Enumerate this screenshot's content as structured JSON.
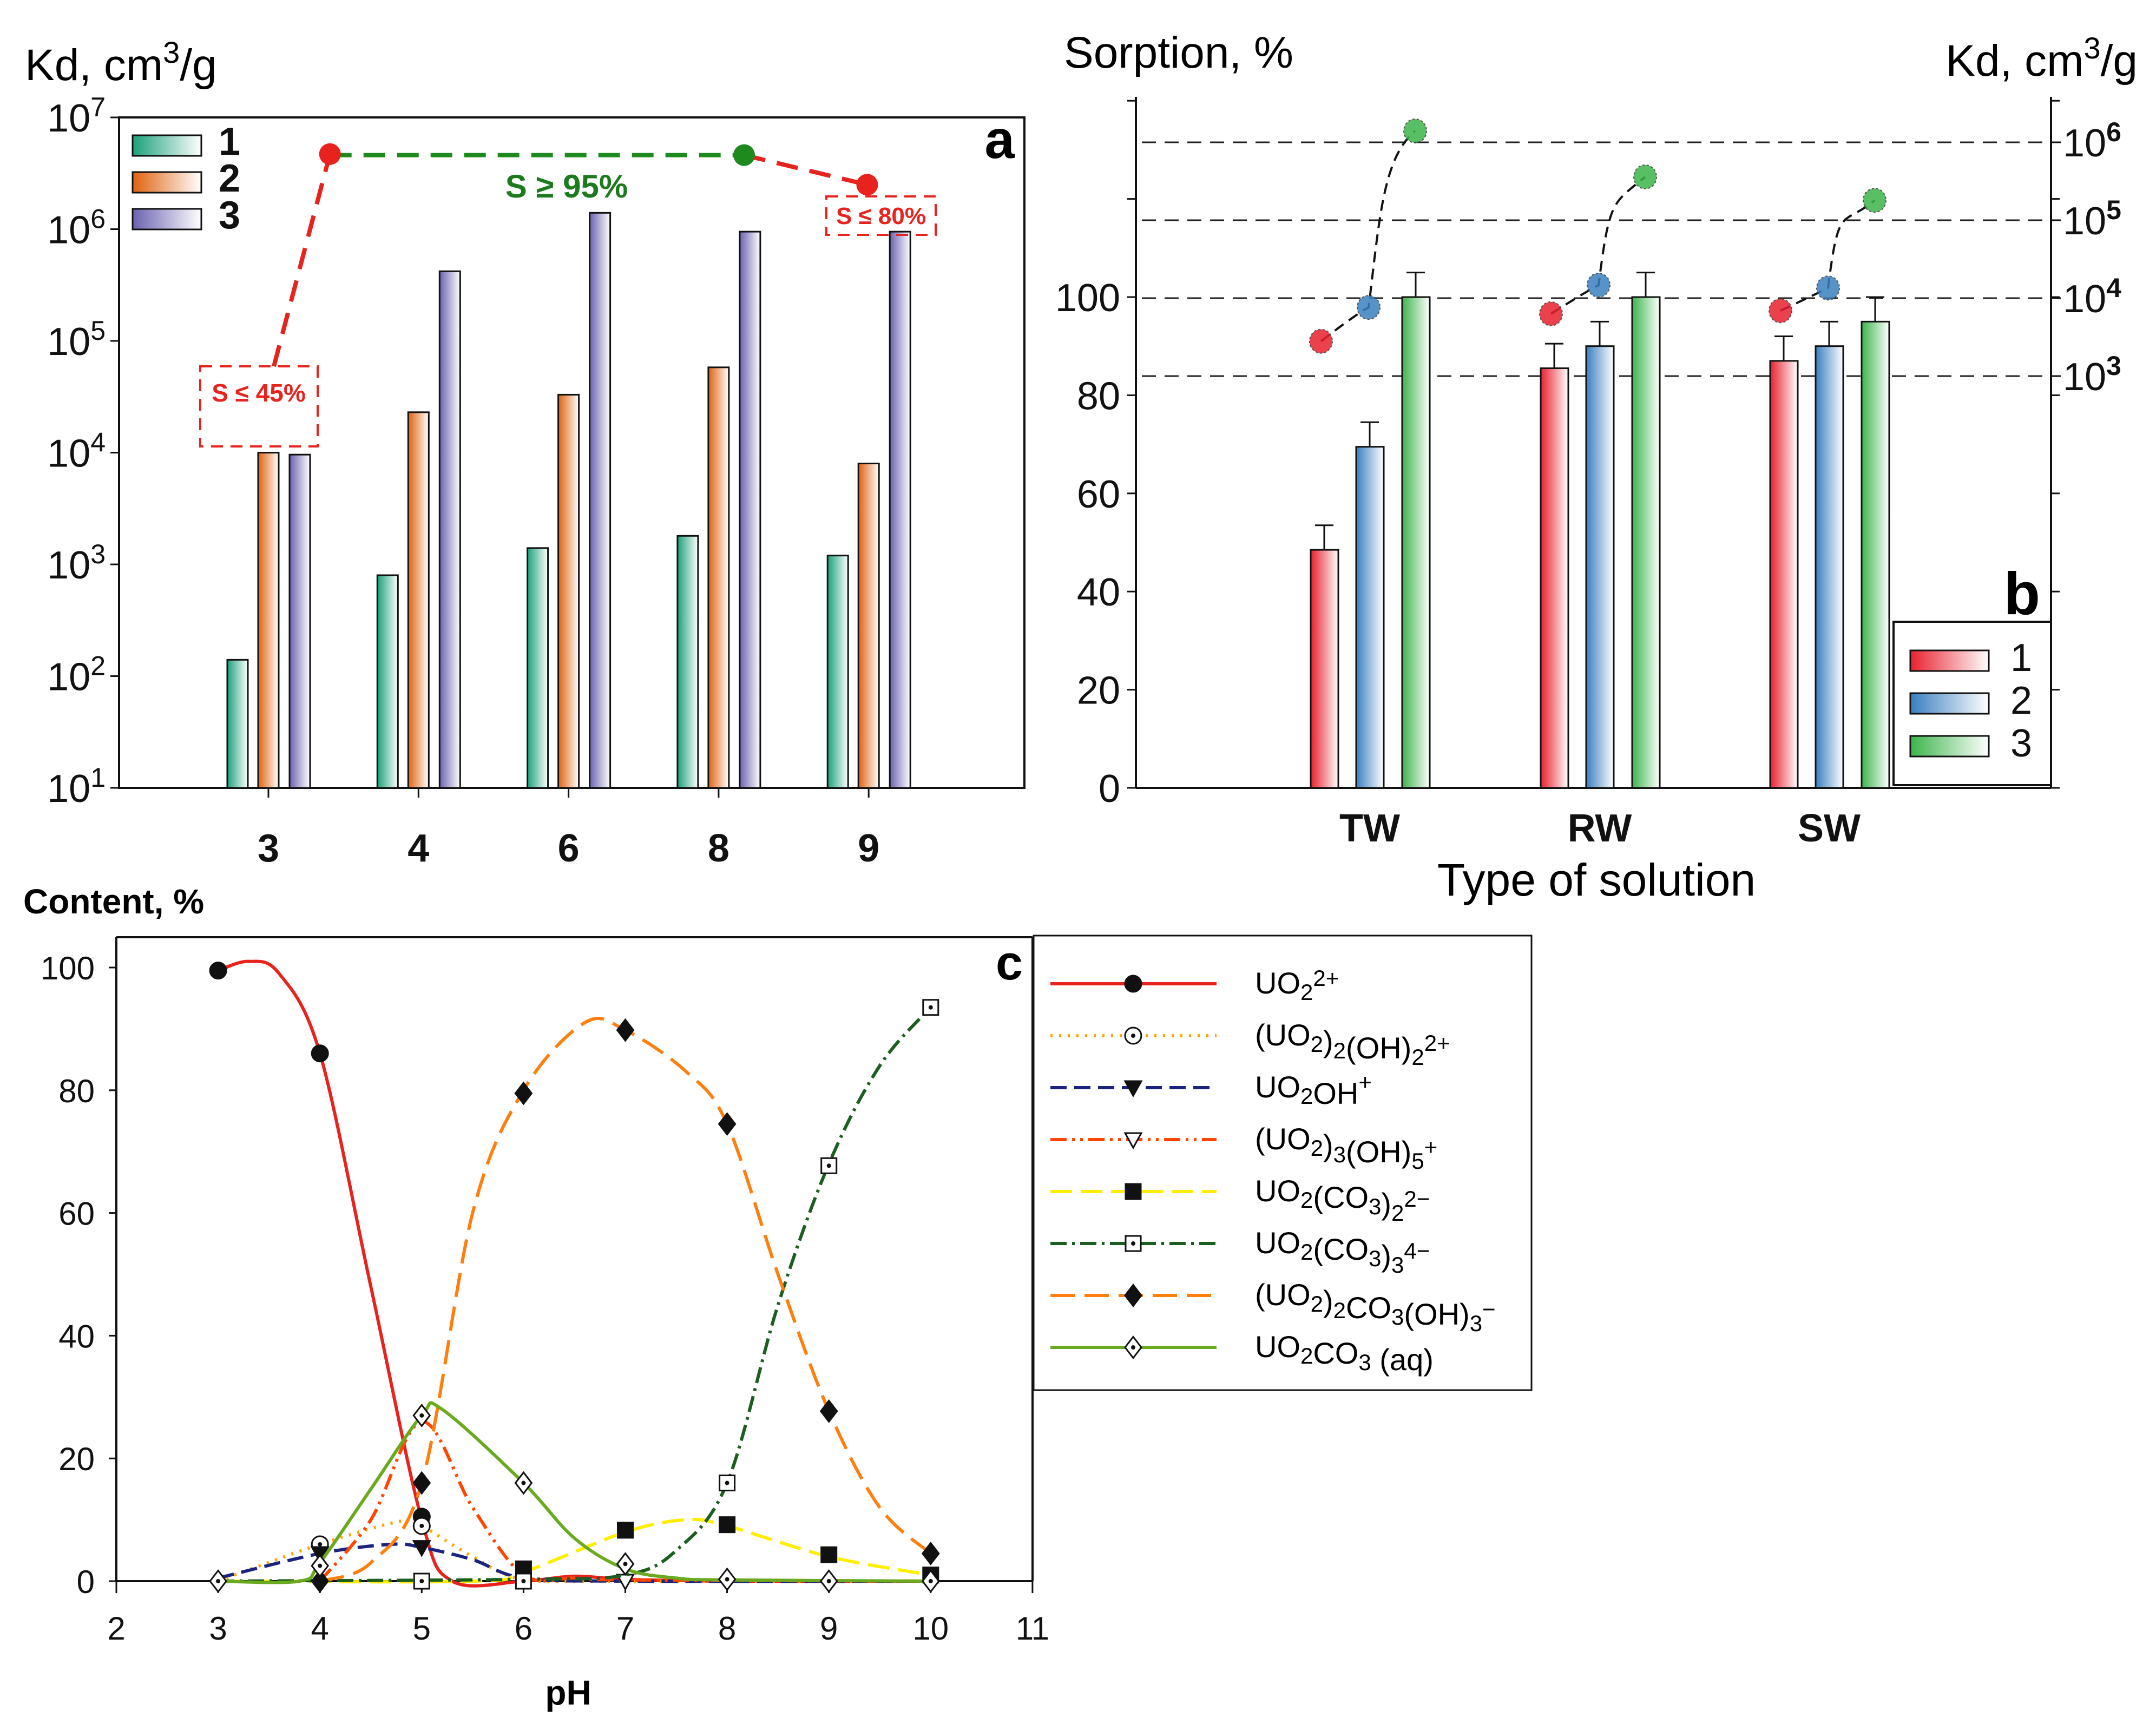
{
  "chart_data": [
    {
      "panel": "a",
      "type": "bar",
      "panel_label": "a",
      "ylabel": {
        "base": "Kd, cm",
        "sup": "3",
        "tail": "/g"
      },
      "yscale": "log",
      "ylim": [
        10,
        10000000
      ],
      "ytick_exponents": [
        "1",
        "2",
        "3",
        "4",
        "5",
        "6",
        "7"
      ],
      "categories": [
        "3",
        "4",
        "6",
        "8",
        "9"
      ],
      "series": [
        {
          "name": "1",
          "color": "#1aa07a",
          "values": [
            140,
            800,
            1400,
            1800,
            1200
          ]
        },
        {
          "name": "2",
          "color": "#e0620f",
          "values": [
            10000,
            23000,
            33000,
            58000,
            8000
          ]
        },
        {
          "name": "3",
          "color": "#6a62b0",
          "values": [
            9600,
            420000,
            1400000,
            950000,
            950000
          ]
        }
      ],
      "overlay": {
        "points": [
          {
            "category_index": 0.41,
            "kd": 4700000,
            "color": "#e8231e"
          },
          {
            "category_index": 3.17,
            "kd": 4600000,
            "color": "#1e8a1e"
          },
          {
            "category_index": 3.99,
            "kd": 2500000,
            "color": "#e8231e"
          }
        ],
        "annotations": [
          "S ≤ 45%",
          "S ≥ 95%",
          "S ≤ 80%"
        ]
      }
    },
    {
      "panel": "b",
      "type": "bar",
      "panel_label": "b",
      "ylabel": "Sorption, %",
      "y2label": {
        "base": "Kd, cm",
        "sup": "3",
        "tail": "/g"
      },
      "xlabel": "Type of solution",
      "ylim": [
        0,
        140
      ],
      "yticks": [
        "0",
        "20",
        "40",
        "60",
        "80",
        "100"
      ],
      "y2scale": "log",
      "y2tick_exponents": [
        "3",
        "4",
        "5",
        "6"
      ],
      "categories": [
        "TW",
        "RW",
        "SW"
      ],
      "series": [
        {
          "name": "1",
          "color": "#e8202e",
          "values": [
            48.5,
            85.5,
            87
          ],
          "errors": [
            5,
            5,
            5
          ],
          "kd": [
            2800,
            6300,
            6900
          ]
        },
        {
          "name": "2",
          "color": "#3a7fc0",
          "values": [
            69.5,
            90,
            90
          ],
          "errors": [
            5,
            5,
            5
          ],
          "kd": [
            7600,
            14700,
            13500
          ]
        },
        {
          "name": "3",
          "color": "#3cb44b",
          "values": [
            100,
            100,
            95
          ],
          "errors": [
            5,
            5,
            5
          ],
          "kd": [
            1400000,
            360000,
            180000
          ]
        }
      ]
    },
    {
      "panel": "c",
      "type": "line",
      "panel_label": "c",
      "ylabel": "Content, %",
      "xlabel": "pH",
      "xlim": [
        2,
        11
      ],
      "ylim": [
        0,
        100
      ],
      "xticks": [
        "2",
        "3",
        "4",
        "5",
        "6",
        "7",
        "8",
        "9",
        "10",
        "11"
      ],
      "yticks": [
        "0",
        "20",
        "40",
        "60",
        "80",
        "100"
      ],
      "series": [
        {
          "label_parts": [
            [
              "UO",
              ""
            ],
            [
              "2",
              "sub"
            ],
            [
              "2+",
              "sup"
            ]
          ],
          "color": "#e8231e",
          "dash": "",
          "marker": "circle-filled",
          "curve": [
            [
              3,
              99.5
            ],
            [
              3.3,
              101
            ],
            [
              3.6,
              99
            ],
            [
              4,
              86
            ],
            [
              4.5,
              48
            ],
            [
              5,
              10
            ],
            [
              5.3,
              0
            ],
            [
              6,
              0
            ],
            [
              6.5,
              0.8
            ],
            [
              7,
              0.3
            ],
            [
              8,
              0
            ],
            [
              10,
              0
            ]
          ],
          "markers": [
            [
              3,
              99.5
            ],
            [
              4,
              86
            ],
            [
              5,
              10.5
            ]
          ]
        },
        {
          "label_parts": [
            [
              "(UO",
              ""
            ],
            [
              "2",
              "sub"
            ],
            [
              ")",
              ""
            ],
            [
              "2",
              "sub"
            ],
            [
              "(OH)",
              ""
            ],
            [
              "2",
              "sub"
            ],
            [
              "2+",
              "sup"
            ]
          ],
          "color": "#ffa500",
          "dash": "4 12",
          "marker": "circle-dot",
          "curve": [
            [
              3,
              0
            ],
            [
              4,
              6
            ],
            [
              4.8,
              9.8
            ],
            [
              5,
              9
            ],
            [
              5.5,
              4
            ],
            [
              6,
              0.3
            ],
            [
              7,
              0
            ],
            [
              10,
              0
            ]
          ],
          "markers": [
            [
              4,
              6
            ],
            [
              5,
              9
            ]
          ]
        },
        {
          "label_parts": [
            [
              "UO",
              ""
            ],
            [
              "2",
              "sub"
            ],
            [
              "OH",
              ""
            ],
            [
              "+",
              "sup"
            ]
          ],
          "color": "#1a237e",
          "dash": "30 14",
          "marker": "triangle-filled",
          "curve": [
            [
              3,
              0.5
            ],
            [
              4,
              4.5
            ],
            [
              4.7,
              6
            ],
            [
              5,
              5.5
            ],
            [
              5.5,
              3.5
            ],
            [
              6,
              0.5
            ],
            [
              7,
              0
            ],
            [
              10,
              0
            ]
          ],
          "markers": [
            [
              4,
              4.5
            ],
            [
              5,
              5.5
            ]
          ]
        },
        {
          "label_parts": [
            [
              "(UO",
              ""
            ],
            [
              "2",
              "sub"
            ],
            [
              ")",
              ""
            ],
            [
              "3",
              "sub"
            ],
            [
              "(OH)",
              ""
            ],
            [
              "5",
              "sub"
            ],
            [
              "+",
              "sup"
            ]
          ],
          "color": "#ff4500",
          "dash": "30 10 5 10 5 10",
          "marker": "triangle-open",
          "curve": [
            [
              4,
              0
            ],
            [
              4.5,
              10
            ],
            [
              5,
              26
            ],
            [
              5.5,
              12
            ],
            [
              6,
              1
            ],
            [
              6.5,
              0.5
            ],
            [
              7,
              0.2
            ],
            [
              10,
              0
            ]
          ],
          "markers": [
            [
              7,
              0
            ]
          ]
        },
        {
          "label_parts": [
            [
              "UO",
              ""
            ],
            [
              "2",
              "sub"
            ],
            [
              "(CO",
              ""
            ],
            [
              "3",
              "sub"
            ],
            [
              ")",
              ""
            ],
            [
              "2",
              "sub"
            ],
            [
              "2−",
              "sup"
            ]
          ],
          "color": "#ffee00",
          "dash": "40 16",
          "marker": "square-filled",
          "curve": [
            [
              3,
              0
            ],
            [
              5.5,
              0
            ],
            [
              6,
              1.5
            ],
            [
              7,
              8
            ],
            [
              7.6,
              10
            ],
            [
              8,
              9
            ],
            [
              9,
              4
            ],
            [
              10,
              1
            ]
          ],
          "markers": [
            [
              6,
              2
            ],
            [
              7,
              8.3
            ],
            [
              8,
              9.2
            ],
            [
              9,
              4.3
            ],
            [
              10,
              1
            ]
          ]
        },
        {
          "label_parts": [
            [
              "UO",
              ""
            ],
            [
              "2",
              "sub"
            ],
            [
              "(CO",
              ""
            ],
            [
              "3",
              "sub"
            ],
            [
              ")",
              ""
            ],
            [
              "3",
              "sub"
            ],
            [
              "4−",
              "sup"
            ]
          ],
          "color": "#1b5e20",
          "dash": "30 10 5 10",
          "marker": "square-dot",
          "curve": [
            [
              3,
              0
            ],
            [
              6,
              0.3
            ],
            [
              7,
              1
            ],
            [
              7.5,
              5
            ],
            [
              8,
              16
            ],
            [
              8.5,
              45
            ],
            [
              9,
              68
            ],
            [
              9.5,
              84
            ],
            [
              10,
              93.5
            ]
          ],
          "markers": [
            [
              5,
              0
            ],
            [
              6,
              0
            ],
            [
              8,
              16
            ],
            [
              9,
              67.7
            ],
            [
              10,
              93.5
            ]
          ]
        },
        {
          "label_parts": [
            [
              "(UO",
              ""
            ],
            [
              "2",
              "sub"
            ],
            [
              ")",
              ""
            ],
            [
              "2",
              "sub"
            ],
            [
              "CO",
              ""
            ],
            [
              "3",
              "sub"
            ],
            [
              "(OH)",
              ""
            ],
            [
              "3",
              "sub"
            ],
            [
              "−",
              "sup"
            ]
          ],
          "color": "#ff7f0e",
          "dash": "45 18",
          "marker": "diamond-filled",
          "curve": [
            [
              4,
              0
            ],
            [
              4.5,
              3
            ],
            [
              5,
              16
            ],
            [
              5.5,
              60
            ],
            [
              6,
              80
            ],
            [
              6.6,
              91
            ],
            [
              7,
              89.8
            ],
            [
              7.6,
              83
            ],
            [
              8,
              74.5
            ],
            [
              8.5,
              50
            ],
            [
              9,
              27.7
            ],
            [
              9.5,
              12
            ],
            [
              10,
              4.5
            ]
          ],
          "markers": [
            [
              4,
              0
            ],
            [
              5,
              16
            ],
            [
              6,
              79.5
            ],
            [
              7,
              89.8
            ],
            [
              8,
              74.5
            ],
            [
              9,
              27.7
            ],
            [
              10,
              4.5
            ]
          ]
        },
        {
          "label_parts": [
            [
              "UO",
              ""
            ],
            [
              "2",
              "sub"
            ],
            [
              "CO",
              ""
            ],
            [
              "3",
              "sub"
            ],
            [
              " (aq)",
              ""
            ]
          ],
          "color": "#6aaa1e",
          "dash": "",
          "marker": "diamond-dot",
          "curve": [
            [
              3,
              0
            ],
            [
              3.8,
              0
            ],
            [
              4,
              3
            ],
            [
              4.5,
              15
            ],
            [
              5,
              27
            ],
            [
              5.2,
              28
            ],
            [
              6,
              16
            ],
            [
              6.5,
              7
            ],
            [
              7,
              2
            ],
            [
              7.5,
              0.5
            ],
            [
              8,
              0.2
            ],
            [
              10,
              0
            ]
          ],
          "markers": [
            [
              3,
              0
            ],
            [
              4,
              2.5
            ],
            [
              5,
              27
            ],
            [
              6,
              16
            ],
            [
              7,
              2.8
            ],
            [
              8,
              0.3
            ],
            [
              9,
              0
            ],
            [
              10,
              0
            ]
          ]
        }
      ]
    }
  ]
}
